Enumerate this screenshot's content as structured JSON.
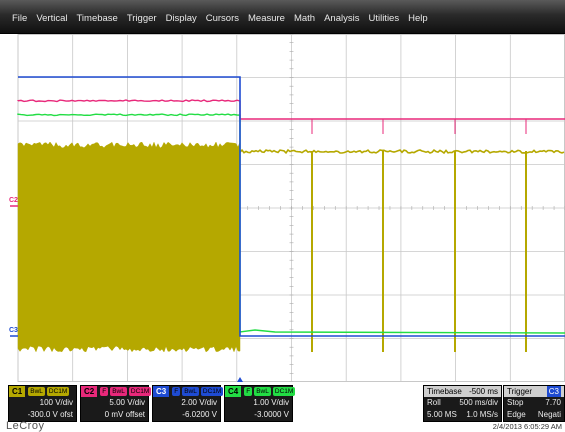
{
  "menu": [
    "File",
    "Vertical",
    "Timebase",
    "Trigger",
    "Display",
    "Cursors",
    "Measure",
    "Math",
    "Analysis",
    "Utilities",
    "Help"
  ],
  "colors": {
    "c1": "#b5a800",
    "c2": "#e8287a",
    "c3": "#1e4bd2",
    "c4": "#22dd44",
    "grid": "#c8c8c8"
  },
  "axis_labels": {
    "c2": "C2",
    "c3": "C3"
  },
  "channels": [
    {
      "tag": "C1",
      "badges": [
        "BwL",
        "DC1M"
      ],
      "scale": "100 V/div",
      "offset": "-300.0 V ofst",
      "color": "#b5a800"
    },
    {
      "tag": "C2",
      "badges": [
        "F",
        "BwL",
        "DC1M"
      ],
      "scale": "5.00 V/div",
      "offset": "0 mV offset",
      "color": "#e8287a"
    },
    {
      "tag": "C3",
      "badges": [
        "F",
        "BwL",
        "DC1M"
      ],
      "scale": "2.00 V/div",
      "offset": "-6.0200 V",
      "color": "#1e4bd2"
    },
    {
      "tag": "C4",
      "badges": [
        "F",
        "BwL",
        "DC1M"
      ],
      "scale": "1.00 V/div",
      "offset": "-3.0000 V",
      "color": "#22dd44"
    }
  ],
  "timebase": {
    "label": "Timebase",
    "delay": "-500 ms",
    "mode": "Roll",
    "per_div": "500 ms/div",
    "samples": "5.00 MS",
    "rate": "1.0 MS/s"
  },
  "trigger": {
    "label": "Trigger",
    "channel": "C3",
    "state": "Stop",
    "level": "7.70",
    "type": "Edge",
    "slope": "Negati"
  },
  "logo": "LeCroy",
  "datetime": "2/4/2013 6:05:29 AM"
}
